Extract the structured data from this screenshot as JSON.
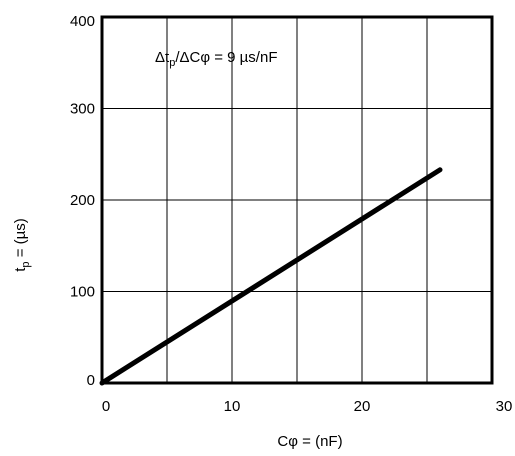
{
  "chart_data": {
    "type": "line",
    "xlabel": "Cφ = (nF)",
    "ylabel_main": "t",
    "ylabel_sub": "p",
    "ylabel_rest": " = (µs)",
    "annotation": {
      "delta1": "Δt",
      "sub": "p",
      "rest": "/ΔCφ = 9 µs/nF"
    },
    "xlim": [
      0,
      30
    ],
    "ylim": [
      0,
      400
    ],
    "xticks": [
      0,
      5,
      10,
      15,
      20,
      25,
      30
    ],
    "xtick_labels": [
      "0",
      "",
      "10",
      "",
      "20",
      "",
      "30"
    ],
    "yticks": [
      0,
      100,
      200,
      300,
      400
    ],
    "ytick_labels": [
      "0",
      "100",
      "200",
      "300",
      "400"
    ],
    "grid": true,
    "series": [
      {
        "x": [
          0,
          26
        ],
        "y": [
          0,
          233
        ]
      }
    ],
    "line_color": "#000000"
  }
}
